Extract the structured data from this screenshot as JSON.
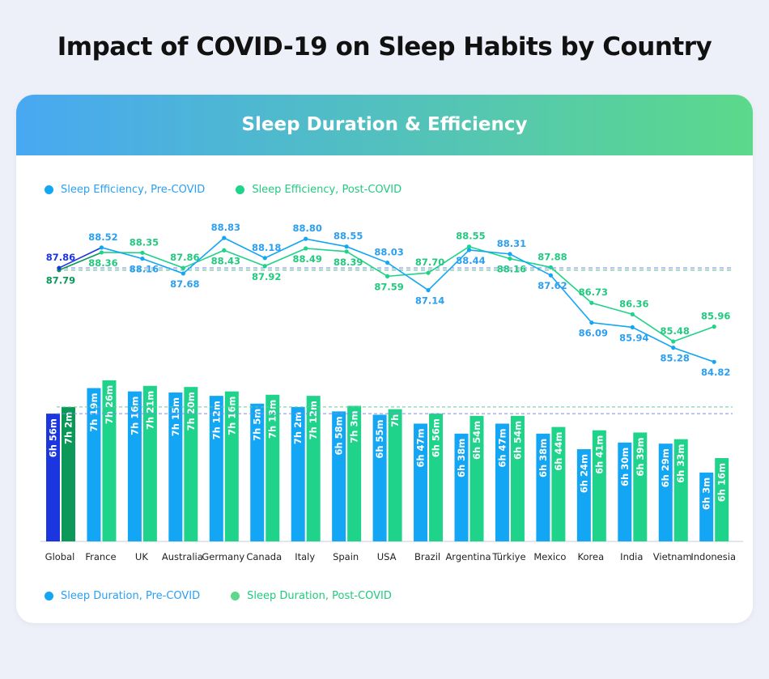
{
  "title": "Impact of COVID-19 on Sleep Habits by Country",
  "card_title": "Sleep Duration & Efficiency",
  "colors": {
    "pre": "#13a6f4",
    "post": "#1fd38a",
    "global_pre": "#1c36df",
    "global_post": "#0c9858",
    "pre_text": "#2b9ff0",
    "post_text": "#22c97e"
  },
  "chart_data": [
    {
      "type": "line",
      "legend": [
        "Sleep Efficiency, Pre-COVID",
        "Sleep Efficiency, Post-COVID"
      ],
      "legend_position": "top-left",
      "categories": [
        "Global",
        "France",
        "UK",
        "Australia",
        "Germany",
        "Canada",
        "Italy",
        "Spain",
        "USA",
        "Brazil",
        "Argentina",
        "Türkiye",
        "Mexico",
        "Korea",
        "India",
        "Vietnam",
        "Indonesia"
      ],
      "series": [
        {
          "name": "Sleep Efficiency, Pre-COVID",
          "values": [
            87.86,
            88.52,
            88.16,
            87.68,
            88.83,
            88.18,
            88.8,
            88.55,
            88.03,
            87.14,
            88.44,
            88.31,
            87.62,
            86.09,
            85.94,
            85.28,
            84.82
          ],
          "labels": [
            "87.86",
            "88.52",
            "88.16",
            "87.68",
            "88.83",
            "88.18",
            "88.80",
            "88.55",
            "88.03",
            "87.14",
            "88.44",
            "88.31",
            "87.62",
            "86.09",
            "85.94",
            "85.28",
            "84.82"
          ]
        },
        {
          "name": "Sleep Efficiency, Post-COVID",
          "values": [
            87.79,
            88.36,
            88.35,
            87.86,
            88.43,
            87.92,
            88.49,
            88.39,
            87.59,
            87.7,
            88.55,
            88.16,
            87.88,
            86.73,
            86.36,
            85.48,
            85.96
          ],
          "labels": [
            "87.79",
            "88.36",
            "88.35",
            "87.86",
            "88.43",
            "87.92",
            "88.49",
            "88.39",
            "87.59",
            "87.70",
            "88.55",
            "88.16",
            "87.88",
            "86.73",
            "86.36",
            "85.48",
            "85.96"
          ]
        }
      ],
      "reference_lines": "global averages (dashed)",
      "grid": false
    },
    {
      "type": "bar",
      "legend": [
        "Sleep Duration, Pre-COVID",
        "Sleep Duration, Post-COVID"
      ],
      "legend_position": "bottom-left",
      "categories": [
        "Global",
        "France",
        "UK",
        "Australia",
        "Germany",
        "Canada",
        "Italy",
        "Spain",
        "USA",
        "Brazil",
        "Argentina",
        "Türkiye",
        "Mexico",
        "Korea",
        "India",
        "Vietnam",
        "Indonesia"
      ],
      "series": [
        {
          "name": "Sleep Duration, Pre-COVID",
          "unit": "minutes",
          "values": [
            416,
            439,
            436,
            435,
            432,
            425,
            422,
            418,
            415,
            407,
            398,
            407,
            398,
            384,
            390,
            389,
            363
          ],
          "labels": [
            "6h 56m",
            "7h 19m",
            "7h 16m",
            "7h 15m",
            "7h 12m",
            "7h 5m",
            "7h 2m",
            "6h 58m",
            "6h 55m",
            "6h 47m",
            "6h 38m",
            "6h 47m",
            "6h 38m",
            "6h 24m",
            "6h 30m",
            "6h 29m",
            "6h 3m"
          ]
        },
        {
          "name": "Sleep Duration, Post-COVID",
          "unit": "minutes",
          "values": [
            422,
            446,
            441,
            440,
            436,
            433,
            432,
            423,
            420,
            416,
            414,
            414,
            404,
            401,
            399,
            393,
            376
          ],
          "labels": [
            "7h 2m",
            "7h 26m",
            "7h 21m",
            "7h 20m",
            "7h 16m",
            "7h 13m",
            "7h 12m",
            "7h 3m",
            "7h",
            "6h 56m",
            "6h 54m",
            "6h 54m",
            "6h 44m",
            "6h 41m",
            "6h 39m",
            "6h 33m",
            "6h 16m"
          ]
        }
      ],
      "grid": false
    }
  ]
}
